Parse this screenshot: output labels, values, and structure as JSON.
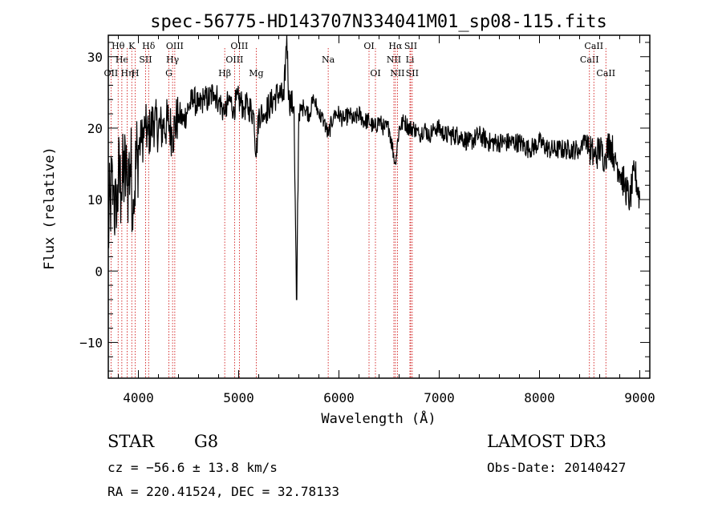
{
  "chart_data": {
    "type": "line",
    "title": "spec-56775-HD143707N334041M01_sp08-115.fits",
    "xlabel": "Wavelength (Å)",
    "ylabel": "Flux (relative)",
    "xlim": [
      3700,
      9100
    ],
    "ylim": [
      -15,
      33
    ],
    "x_ticks": [
      4000,
      5000,
      6000,
      7000,
      8000,
      9000
    ],
    "y_ticks": [
      -10,
      0,
      10,
      20,
      30
    ],
    "grid": false,
    "line_color": "#000000",
    "marker_color": "#cc0000",
    "continuum": [
      [
        3700,
        5
      ],
      [
        3720,
        10
      ],
      [
        3750,
        12
      ],
      [
        3780,
        6
      ],
      [
        3800,
        13
      ],
      [
        3830,
        11
      ],
      [
        3860,
        14
      ],
      [
        3890,
        12
      ],
      [
        3920,
        15
      ],
      [
        3950,
        10
      ],
      [
        3990,
        17
      ],
      [
        4030,
        18
      ],
      [
        4070,
        20
      ],
      [
        4100,
        19
      ],
      [
        4150,
        21
      ],
      [
        4200,
        20
      ],
      [
        4250,
        20
      ],
      [
        4300,
        21
      ],
      [
        4340,
        19
      ],
      [
        4400,
        22
      ],
      [
        4450,
        21
      ],
      [
        4500,
        23
      ],
      [
        4550,
        24
      ],
      [
        4600,
        23
      ],
      [
        4650,
        24
      ],
      [
        4700,
        24
      ],
      [
        4750,
        25
      ],
      [
        4800,
        24
      ],
      [
        4861,
        22
      ],
      [
        4900,
        24
      ],
      [
        4950,
        23
      ],
      [
        5000,
        24
      ],
      [
        5050,
        23
      ],
      [
        5100,
        23
      ],
      [
        5150,
        22
      ],
      [
        5175,
        16
      ],
      [
        5200,
        22
      ],
      [
        5250,
        22
      ],
      [
        5300,
        23
      ],
      [
        5350,
        24
      ],
      [
        5400,
        25
      ],
      [
        5450,
        24
      ],
      [
        5480,
        33
      ],
      [
        5500,
        24
      ],
      [
        5550,
        23
      ],
      [
        5577,
        -4
      ],
      [
        5600,
        22
      ],
      [
        5650,
        23
      ],
      [
        5700,
        22
      ],
      [
        5750,
        24
      ],
      [
        5800,
        22
      ],
      [
        5850,
        21
      ],
      [
        5893,
        19
      ],
      [
        5950,
        22
      ],
      [
        6000,
        22
      ],
      [
        6050,
        21
      ],
      [
        6100,
        22
      ],
      [
        6150,
        21
      ],
      [
        6200,
        22
      ],
      [
        6250,
        21
      ],
      [
        6300,
        21
      ],
      [
        6350,
        20
      ],
      [
        6400,
        21
      ],
      [
        6450,
        20
      ],
      [
        6500,
        20
      ],
      [
        6563,
        15
      ],
      [
        6600,
        20
      ],
      [
        6650,
        21
      ],
      [
        6700,
        20
      ],
      [
        6750,
        20
      ],
      [
        6800,
        19
      ],
      [
        6850,
        20
      ],
      [
        6900,
        19
      ],
      [
        6950,
        20
      ],
      [
        7000,
        20
      ],
      [
        7050,
        19
      ],
      [
        7100,
        19
      ],
      [
        7200,
        19
      ],
      [
        7300,
        18
      ],
      [
        7400,
        19
      ],
      [
        7500,
        18
      ],
      [
        7600,
        18
      ],
      [
        7700,
        18
      ],
      [
        7800,
        18
      ],
      [
        7900,
        17
      ],
      [
        8000,
        18
      ],
      [
        8100,
        17
      ],
      [
        8200,
        17
      ],
      [
        8300,
        17
      ],
      [
        8400,
        17
      ],
      [
        8450,
        19
      ],
      [
        8500,
        17
      ],
      [
        8550,
        16
      ],
      [
        8600,
        17
      ],
      [
        8650,
        16
      ],
      [
        8700,
        18
      ],
      [
        8750,
        16
      ],
      [
        8800,
        14
      ],
      [
        8850,
        12
      ],
      [
        8900,
        10
      ],
      [
        8950,
        14
      ],
      [
        9000,
        10
      ]
    ],
    "line_markers": [
      {
        "label": "OII",
        "x": 3727,
        "row": 3
      },
      {
        "label": "Hθ",
        "x": 3798,
        "row": 1
      },
      {
        "label": "He",
        "x": 3835,
        "row": 2
      },
      {
        "label": "Hη",
        "x": 3889,
        "row": 3
      },
      {
        "label": "K",
        "x": 3934,
        "row": 1
      },
      {
        "label": "H",
        "x": 3969,
        "row": 3
      },
      {
        "label": "SII",
        "x": 4072,
        "row": 2
      },
      {
        "label": "Hδ",
        "x": 4102,
        "row": 1
      },
      {
        "label": "G",
        "x": 4304,
        "row": 3
      },
      {
        "label": "Hγ",
        "x": 4341,
        "row": 2
      },
      {
        "label": "OIII",
        "x": 4363,
        "row": 1
      },
      {
        "label": "Hβ",
        "x": 4861,
        "row": 3
      },
      {
        "label": "OIII",
        "x": 4959,
        "row": 2
      },
      {
        "label": "OIII",
        "x": 5007,
        "row": 1
      },
      {
        "label": "Mg",
        "x": 5175,
        "row": 3
      },
      {
        "label": "Na",
        "x": 5893,
        "row": 2
      },
      {
        "label": "OI",
        "x": 6300,
        "row": 1
      },
      {
        "label": "OI",
        "x": 6364,
        "row": 3
      },
      {
        "label": "NII",
        "x": 6548,
        "row": 2
      },
      {
        "label": "Hα",
        "x": 6563,
        "row": 1
      },
      {
        "label": "NII",
        "x": 6583,
        "row": 3
      },
      {
        "label": "Li",
        "x": 6708,
        "row": 2
      },
      {
        "label": "SII",
        "x": 6716,
        "row": 1
      },
      {
        "label": "SII",
        "x": 6731,
        "row": 3
      },
      {
        "label": "CaII",
        "x": 8498,
        "row": 2
      },
      {
        "label": "CaII",
        "x": 8542,
        "row": 1
      },
      {
        "label": "CaII",
        "x": 8662,
        "row": 3
      }
    ]
  },
  "info": {
    "class_label": "STAR",
    "subclass": "G8",
    "survey": "LAMOST DR3",
    "redshift": "cz = −56.6 ± 13.8 km/s",
    "obs_date": "Obs-Date: 20140427",
    "coords": "RA = 220.41524, DEC =  32.78133"
  }
}
